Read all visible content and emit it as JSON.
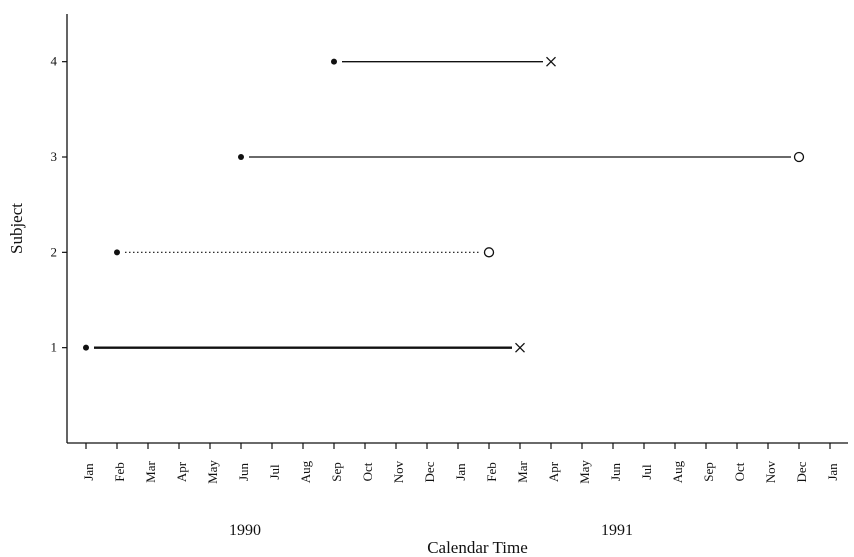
{
  "chart_data": {
    "type": "line",
    "xlabel": "Calendar Time",
    "ylabel": "Subject",
    "x_start": "1990-01",
    "x_end": "1991-12",
    "x_ticks": [
      "Jan",
      "Feb",
      "Mar",
      "Apr",
      "May",
      "Jun",
      "Jul",
      "Aug",
      "Sep",
      "Oct",
      "Nov",
      "Dec",
      "Jan",
      "Feb",
      "Mar",
      "Apr",
      "May",
      "Jun",
      "Jul",
      "Aug",
      "Sep",
      "Oct",
      "Nov",
      "Dec",
      "Jan"
    ],
    "year_labels": [
      {
        "label": "1990",
        "center": "1990-06"
      },
      {
        "label": "1991",
        "center": "1991-06"
      }
    ],
    "y_ticks": [
      1,
      2,
      3,
      4
    ],
    "ylim": [
      0,
      4.5
    ],
    "grid": false,
    "series": [
      {
        "subject": 1,
        "start": "1990-01",
        "end": "1991-03",
        "start_marker": "dot",
        "end_marker": "x",
        "line_style": "solid-thick"
      },
      {
        "subject": 2,
        "start": "1990-02",
        "end": "1991-02",
        "start_marker": "dot",
        "end_marker": "o",
        "line_style": "dotted"
      },
      {
        "subject": 3,
        "start": "1990-06",
        "end": "1991-12",
        "start_marker": "dot",
        "end_marker": "o",
        "line_style": "solid"
      },
      {
        "subject": 4,
        "start": "1990-09",
        "end": "1991-04",
        "start_marker": "dot",
        "end_marker": "x",
        "line_style": "solid"
      }
    ]
  }
}
